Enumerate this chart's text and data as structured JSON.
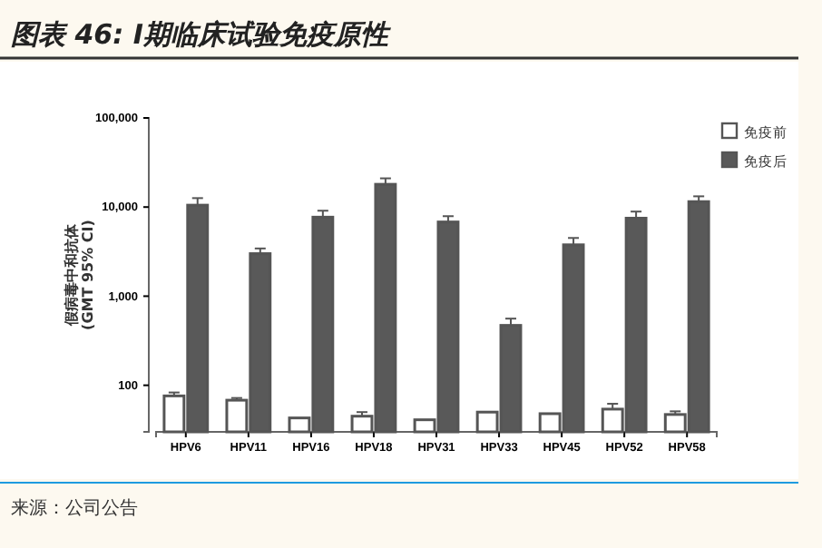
{
  "chart_data": {
    "type": "bar",
    "title": "图表 46: I期临床试验免疫原性",
    "ylabel": "假病毒中和抗体\n(GMT 95% CI)",
    "categories": [
      "HPV6",
      "HPV11",
      "HPV16",
      "HPV18",
      "HPV31",
      "HPV33",
      "HPV45",
      "HPV52",
      "HPV58"
    ],
    "series": [
      {
        "name": "免疫前",
        "color": "#ffffff",
        "values": [
          76,
          68,
          43,
          45,
          41,
          50,
          48,
          54,
          47
        ],
        "errors": [
          [
            76,
            83
          ],
          [
            68,
            72
          ],
          null,
          [
            45,
            50
          ],
          null,
          null,
          null,
          [
            54,
            62
          ],
          [
            47,
            51
          ]
        ]
      },
      {
        "name": "免疫后",
        "color": "#595959",
        "values": [
          10500,
          3000,
          7700,
          18000,
          6800,
          470,
          3770,
          7500,
          11500
        ],
        "errors": [
          [
            10500,
            12600
          ],
          [
            3000,
            3430
          ],
          [
            7700,
            9100
          ],
          [
            18000,
            21000
          ],
          [
            6800,
            7900
          ],
          [
            470,
            560
          ],
          [
            3770,
            4500
          ],
          [
            7500,
            8900
          ],
          [
            11500,
            13200
          ]
        ]
      }
    ],
    "log": true,
    "ylim": [
      30,
      100000
    ],
    "yticks": [
      {
        "value": 100,
        "label": "100"
      },
      {
        "value": 1000,
        "label": "1,000"
      },
      {
        "value": 10000,
        "label": "10,000"
      },
      {
        "value": 100000,
        "label": "100,000"
      }
    ],
    "legend": "top right",
    "annotations": [
      "来源：公司公告"
    ]
  }
}
